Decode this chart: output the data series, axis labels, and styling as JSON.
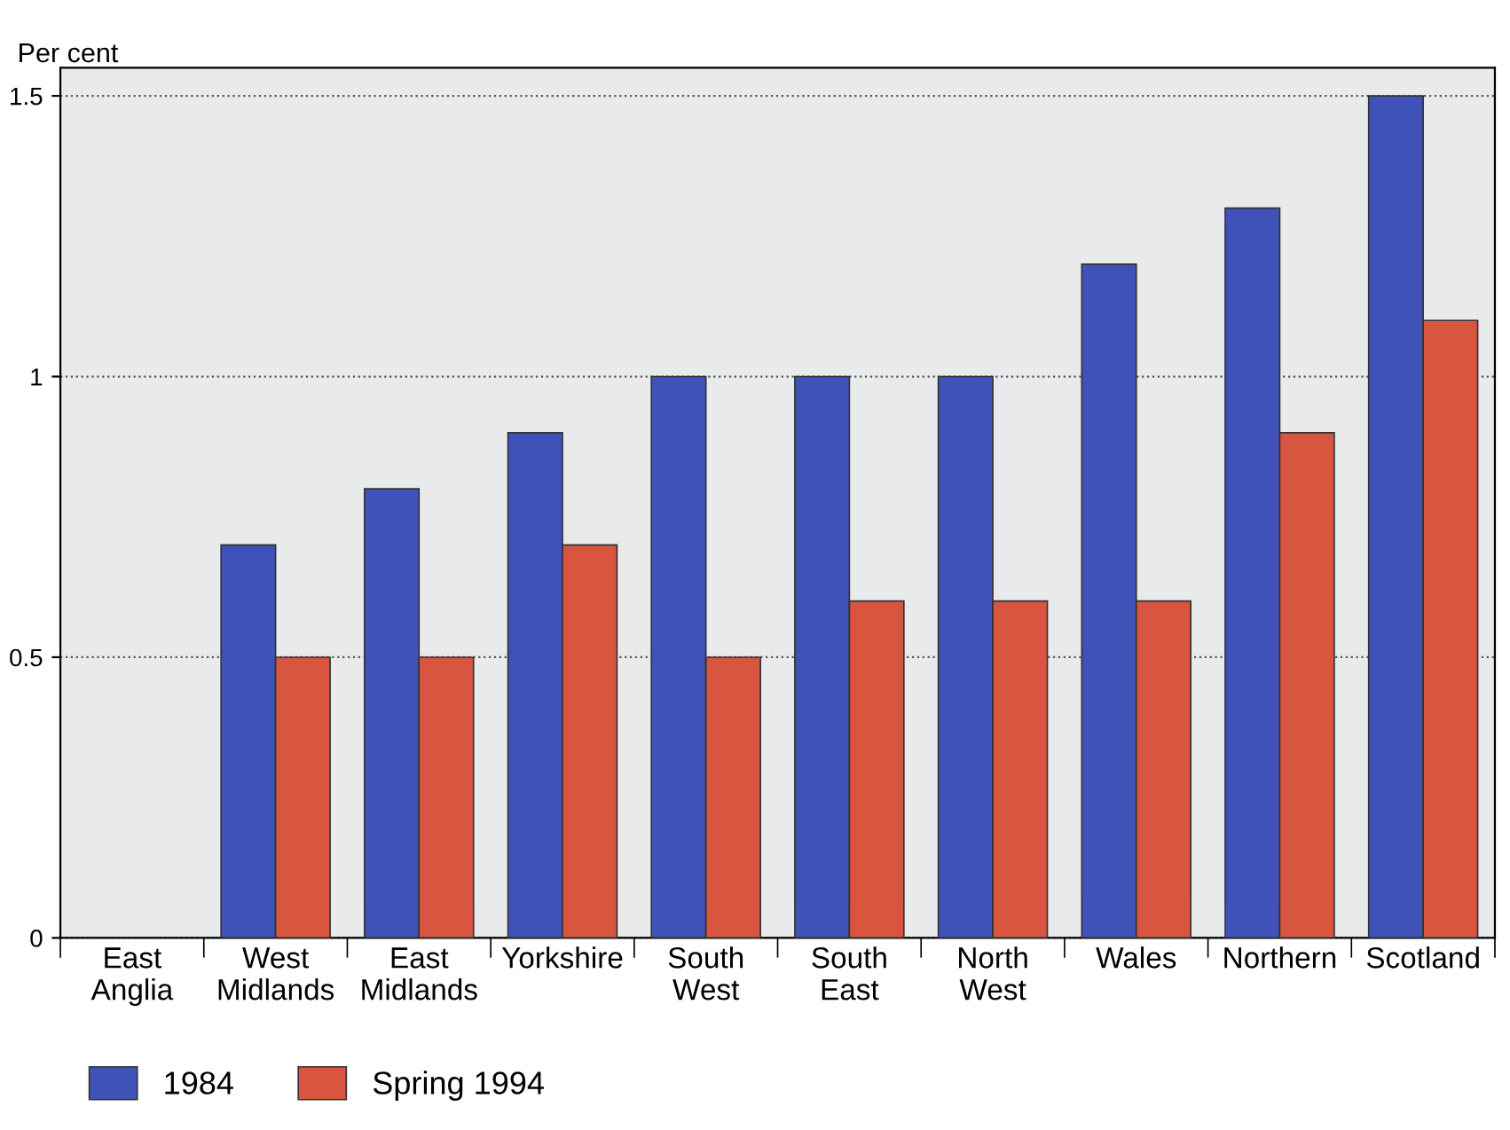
{
  "chart_data": {
    "type": "bar",
    "ylabel": "Per cent",
    "categories": [
      "East\nAnglia",
      "West\nMidlands",
      "East\nMidlands",
      "Yorkshire",
      "South\nWest",
      "South\nEast",
      "North\nWest",
      "Wales",
      "Northern",
      "Scotland"
    ],
    "series": [
      {
        "name": "1984",
        "color": "#3f52b8",
        "values": [
          null,
          0.7,
          0.8,
          0.9,
          1.0,
          1.0,
          1.0,
          1.2,
          1.3,
          1.5
        ]
      },
      {
        "name": "Spring 1994",
        "color": "#d8553f",
        "values": [
          null,
          0.5,
          0.5,
          0.7,
          0.5,
          0.6,
          0.6,
          0.6,
          0.9,
          1.1
        ]
      }
    ],
    "ylim": [
      0,
      1.55
    ],
    "yticks": [
      0,
      0.5,
      1,
      1.5
    ],
    "grid": "y",
    "legend": "bottom left"
  }
}
